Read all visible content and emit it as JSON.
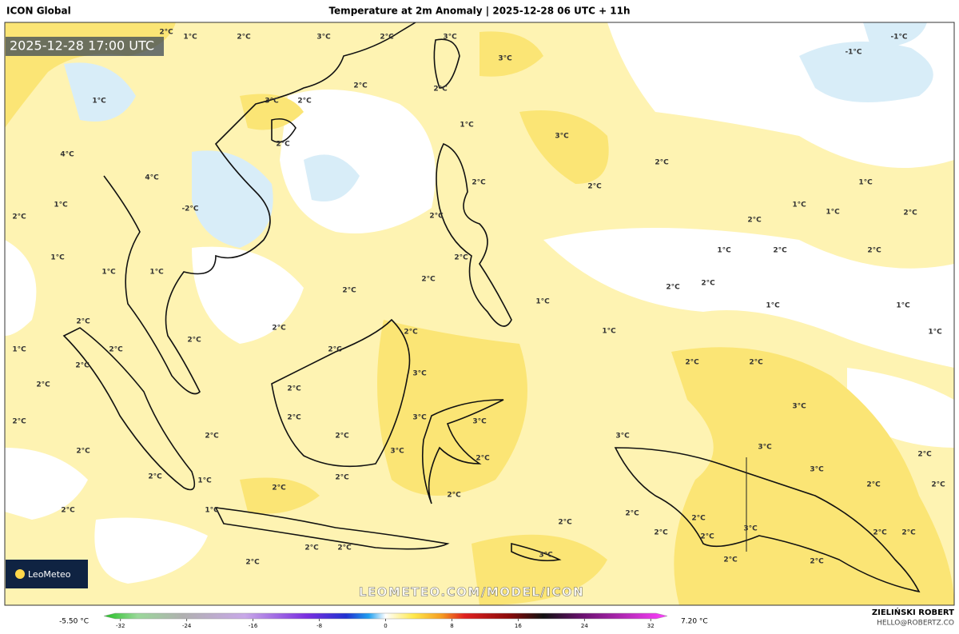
{
  "header": {
    "model": "ICON Global",
    "title": "Temperature at 2m Anomaly | 2025-12-28 06 UTC + 11h"
  },
  "timestamp": "2025-12-28 17:00 UTC",
  "watermark": "LEOMETEO.COM/MODEL/ICON",
  "logo": "LeoMeteo",
  "credit": {
    "name": "ZIELIŃSKI ROBERT",
    "email": "HELLO@ROBERTZ.CO"
  },
  "colorbar": {
    "min_label": "-5.50 °C",
    "max_label": "7.20 °C",
    "range": [
      -34,
      34
    ],
    "ticks": [
      -32,
      -24,
      -16,
      -8,
      0,
      8,
      16,
      24,
      32
    ]
  },
  "contour_labels": [
    "1°C",
    "2°C",
    "3°C",
    "2°C",
    "3°C",
    "3°C",
    "1°C",
    "2°C",
    "3°C",
    "2°C",
    "2°C",
    "2°C",
    "1°C",
    "3°C",
    "2°C",
    "2°C",
    "2°C",
    "4°C",
    "4°C",
    "2°C",
    "1°C",
    "-2°C",
    "2°C",
    "2°C",
    "1°C",
    "1°C",
    "1°C",
    "2°C",
    "1°C",
    "1°C",
    "1°C",
    "2°C",
    "2°C",
    "1°C",
    "2°C",
    "2°C",
    "2°C",
    "2°C",
    "2°C",
    "1°C",
    "1°C",
    "1°C",
    "2°C",
    "2°C",
    "2°C",
    "1°C",
    "1°C",
    "1°C",
    "2°C",
    "2°C",
    "2°C",
    "2°C",
    "2°C",
    "3°C",
    "2°C",
    "2°C",
    "2°C",
    "3°C",
    "2°C",
    "3°C",
    "2°C",
    "3°C",
    "2°C",
    "3°C",
    "2°C",
    "2°C",
    "3°C",
    "2°C",
    "3°C",
    "3°C",
    "2°C",
    "2°C",
    "1°C",
    "2°C",
    "2°C",
    "2°C",
    "2°C",
    "2°C",
    "1°C",
    "2°C",
    "2°C",
    "2°C",
    "2°C",
    "3°C",
    "2°C",
    "2°C",
    "2°C",
    "2°C",
    "2°C",
    "3°C",
    "2°C",
    "2°C",
    "2°C",
    "2°C",
    "-1°C",
    "-1°C",
    "2°C"
  ]
}
